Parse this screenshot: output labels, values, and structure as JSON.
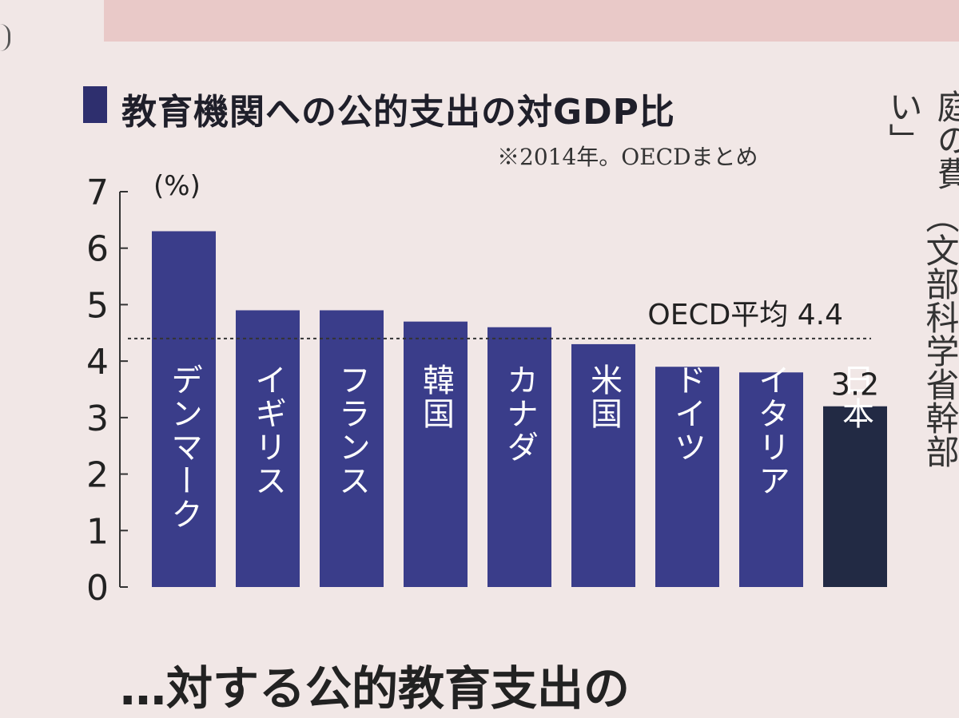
{
  "chart_data": {
    "type": "bar",
    "title": "教育機関への公的支出の対GDP比",
    "subtitle": "※2014年。OECDまとめ",
    "unit": "(%)",
    "ylim": [
      0,
      7
    ],
    "yticks": [
      "0",
      "1",
      "2",
      "3",
      "4",
      "5",
      "6",
      "7"
    ],
    "categories": [
      "デンマーク",
      "イギリス",
      "フランス",
      "韓国",
      "カナダ",
      "米国",
      "ドイツ",
      "イタリア",
      "日本"
    ],
    "values": [
      6.3,
      4.9,
      4.9,
      4.7,
      4.6,
      4.3,
      3.9,
      3.8,
      3.2
    ],
    "reference_line": {
      "label": "OECD平均 4.4",
      "value": 4.4
    },
    "data_labels": [
      {
        "category": "日本",
        "text": "3.2"
      }
    ],
    "colors": {
      "bar": "#3a3d8a",
      "highlight": "#222a44"
    }
  },
  "page": {
    "side_text_1": "い」",
    "side_text_2": "庭の費",
    "side_text_3": "（文部科学省幹部",
    "bottom_text": "…対する公的教育支出の"
  }
}
